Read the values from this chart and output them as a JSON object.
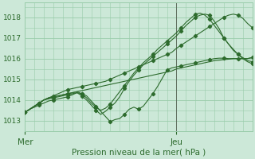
{
  "background_color": "#cce8d8",
  "grid_color": "#99ccaa",
  "line_color": "#2d6b2d",
  "marker_color": "#2d6b2d",
  "xlabel": "Pression niveau de la mer( hPa )",
  "ylim": [
    1012.5,
    1018.7
  ],
  "xlim": [
    0,
    48
  ],
  "yticks": [
    1013,
    1014,
    1015,
    1016,
    1017,
    1018
  ],
  "xtick_positions": [
    0,
    32
  ],
  "xtick_labels": [
    "Mer",
    "Jeu"
  ],
  "vline_x": 32,
  "series": [
    [
      1013.4,
      1013.55,
      1013.7,
      1013.85,
      1014.0,
      1014.1,
      1014.15,
      1014.2,
      1014.25,
      1014.3,
      1014.35,
      1014.4,
      1014.45,
      1014.5,
      1014.55,
      1014.6,
      1014.65,
      1014.7,
      1014.75,
      1014.8,
      1014.85,
      1014.9,
      1014.95,
      1015.0,
      1015.05,
      1015.1,
      1015.15,
      1015.2,
      1015.25,
      1015.3,
      1015.35,
      1015.4,
      1015.5,
      1015.55,
      1015.6,
      1015.65,
      1015.7,
      1015.75,
      1015.8,
      1015.85,
      1015.9,
      1015.92,
      1015.95,
      1015.97,
      1016.0,
      1016.0,
      1016.0,
      1016.0,
      1016.05
    ],
    [
      1013.4,
      1013.55,
      1013.65,
      1013.75,
      1013.85,
      1013.95,
      1014.0,
      1014.05,
      1014.1,
      1014.15,
      1014.25,
      1014.35,
      1014.3,
      1014.2,
      1013.95,
      1013.7,
      1013.45,
      1013.2,
      1012.95,
      1013.05,
      1013.1,
      1013.3,
      1013.55,
      1013.65,
      1013.55,
      1013.7,
      1014.0,
      1014.3,
      1014.65,
      1015.05,
      1015.45,
      1015.55,
      1015.6,
      1015.65,
      1015.7,
      1015.75,
      1015.8,
      1015.85,
      1015.9,
      1015.95,
      1016.0,
      1016.02,
      1016.02,
      1016.0,
      1016.0,
      1016.0,
      1016.0,
      1016.0,
      1016.05
    ],
    [
      1013.4,
      1013.55,
      1013.7,
      1013.85,
      1014.0,
      1014.05,
      1014.1,
      1014.15,
      1014.2,
      1014.25,
      1014.3,
      1014.35,
      1014.2,
      1014.0,
      1013.75,
      1013.5,
      1013.3,
      1013.45,
      1013.65,
      1013.85,
      1014.15,
      1014.55,
      1014.9,
      1015.2,
      1015.45,
      1015.7,
      1015.9,
      1016.1,
      1016.3,
      1016.5,
      1016.7,
      1016.9,
      1017.1,
      1017.35,
      1017.6,
      1017.8,
      1018.0,
      1018.1,
      1018.15,
      1018.1,
      1017.8,
      1017.45,
      1017.0,
      1016.7,
      1016.4,
      1016.2,
      1016.05,
      1015.9,
      1015.85
    ],
    [
      1013.4,
      1013.55,
      1013.7,
      1013.85,
      1014.0,
      1014.1,
      1014.15,
      1014.2,
      1014.25,
      1014.3,
      1014.35,
      1014.4,
      1014.3,
      1014.1,
      1013.85,
      1013.65,
      1013.5,
      1013.6,
      1013.8,
      1014.1,
      1014.4,
      1014.7,
      1015.0,
      1015.3,
      1015.55,
      1015.8,
      1016.0,
      1016.2,
      1016.45,
      1016.65,
      1016.85,
      1017.05,
      1017.25,
      1017.5,
      1017.75,
      1017.95,
      1018.15,
      1018.2,
      1018.1,
      1017.9,
      1017.6,
      1017.3,
      1017.0,
      1016.7,
      1016.45,
      1016.2,
      1016.0,
      1015.85,
      1015.75
    ],
    [
      1013.4,
      1013.55,
      1013.7,
      1013.85,
      1014.0,
      1014.1,
      1014.2,
      1014.3,
      1014.4,
      1014.5,
      1014.55,
      1014.6,
      1014.65,
      1014.7,
      1014.75,
      1014.8,
      1014.85,
      1014.9,
      1015.0,
      1015.1,
      1015.2,
      1015.3,
      1015.4,
      1015.5,
      1015.6,
      1015.7,
      1015.8,
      1015.9,
      1016.0,
      1016.1,
      1016.2,
      1016.3,
      1016.5,
      1016.65,
      1016.8,
      1016.95,
      1017.1,
      1017.25,
      1017.4,
      1017.55,
      1017.7,
      1017.85,
      1018.0,
      1018.1,
      1018.15,
      1018.1,
      1017.95,
      1017.7,
      1017.5
    ]
  ],
  "marker_series": [
    1,
    2,
    3,
    4
  ],
  "marker_every": [
    4,
    3,
    3,
    3,
    3
  ],
  "figsize": [
    3.2,
    2.0
  ],
  "dpi": 100
}
